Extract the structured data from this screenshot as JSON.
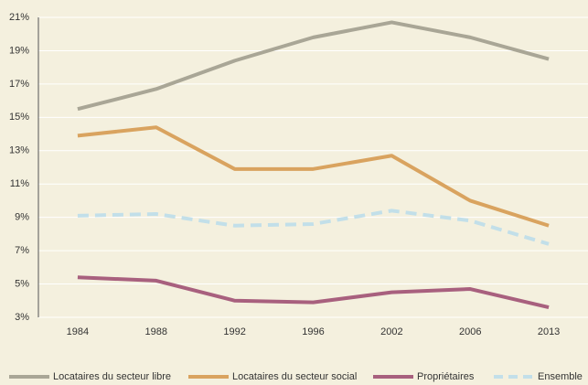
{
  "chart_data": {
    "type": "line",
    "categories": [
      "1984",
      "1988",
      "1992",
      "1996",
      "2002",
      "2006",
      "2013"
    ],
    "series": [
      {
        "name": "Locataires du secteur libre",
        "color": "#a9a696",
        "style": "solid",
        "values": [
          15.5,
          16.7,
          18.4,
          19.8,
          20.7,
          19.8,
          18.5
        ]
      },
      {
        "name": "Locataires du secteur social",
        "color": "#d9a35f",
        "style": "solid",
        "values": [
          13.9,
          14.4,
          11.9,
          11.9,
          12.7,
          10.0,
          8.5
        ]
      },
      {
        "name": "Propriétaires",
        "color": "#a8607e",
        "style": "solid",
        "values": [
          5.4,
          5.2,
          4.0,
          3.9,
          4.5,
          4.7,
          3.6
        ]
      },
      {
        "name": "Ensemble",
        "color": "#c2dfe9",
        "style": "dashed",
        "values": [
          9.1,
          9.2,
          8.5,
          8.6,
          9.4,
          8.8,
          7.4
        ]
      }
    ],
    "ylim": [
      3,
      21
    ],
    "yticks": [
      {
        "value": 3,
        "label": "3%"
      },
      {
        "value": 5,
        "label": "5%"
      },
      {
        "value": 7,
        "label": "7%"
      },
      {
        "value": 9,
        "label": "9%"
      },
      {
        "value": 11,
        "label": "11%"
      },
      {
        "value": 13,
        "label": "13%"
      },
      {
        "value": 15,
        "label": "15%"
      },
      {
        "value": 17,
        "label": "17%"
      },
      {
        "value": 19,
        "label": "19%"
      },
      {
        "value": 21,
        "label": "21%"
      }
    ],
    "grid": true,
    "legend": "bottom"
  }
}
